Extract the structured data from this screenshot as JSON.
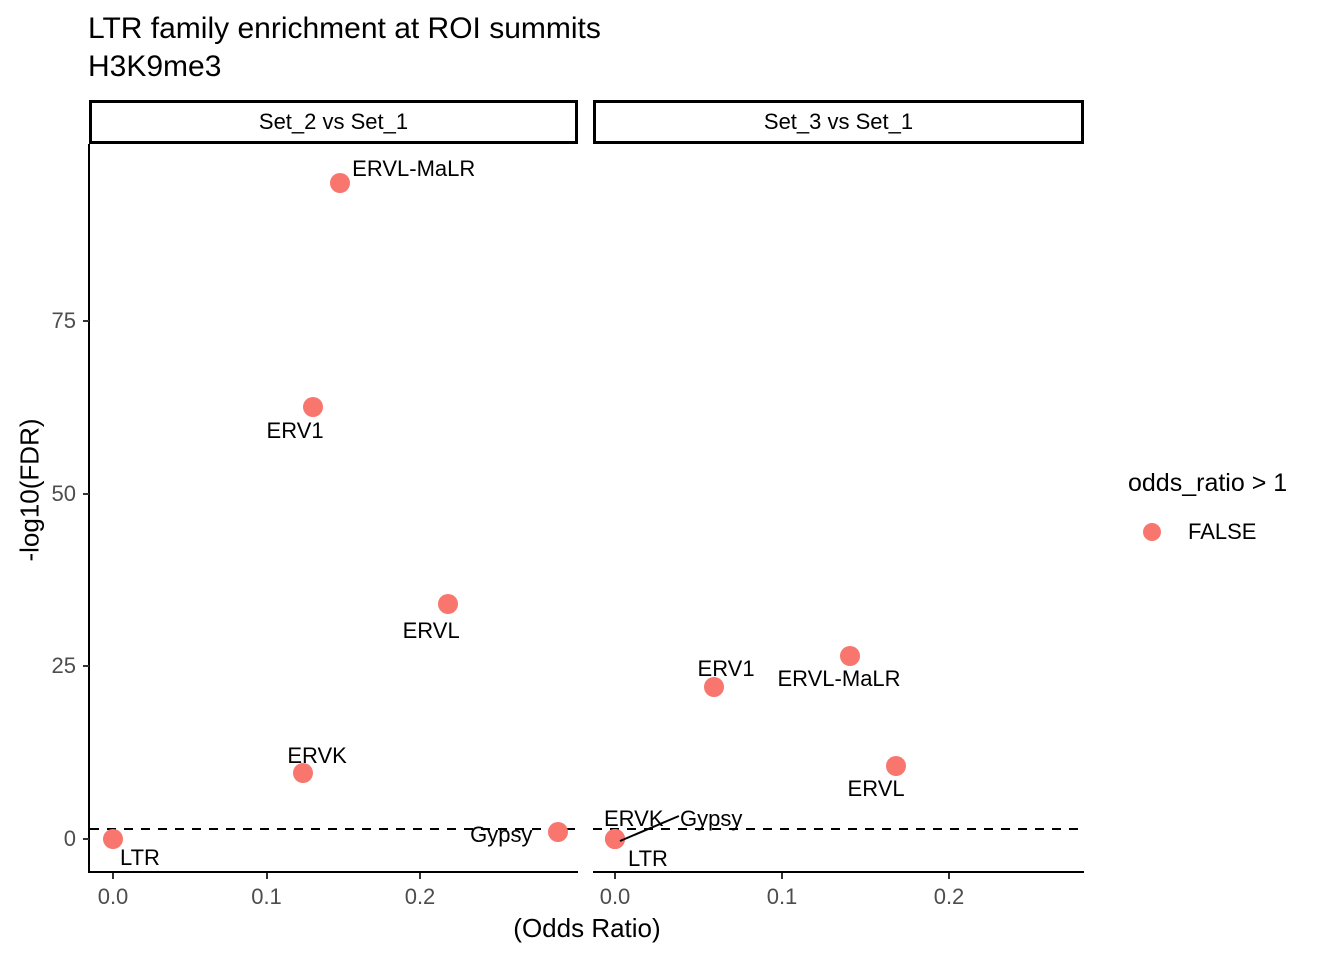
{
  "title": "LTR family enrichment at ROI summits",
  "subtitle": "H3K9me3",
  "x_axis": {
    "label": "(Odds Ratio)",
    "ticks": [
      "0.0",
      "0.1",
      "0.2"
    ]
  },
  "y_axis": {
    "label": "-log10(FDR)",
    "ticks": [
      "0",
      "25",
      "50",
      "75"
    ]
  },
  "legend": {
    "title": "odds_ratio > 1",
    "items": [
      {
        "label": "FALSE",
        "color": "#F8766D"
      }
    ]
  },
  "colors": {
    "point": "#F8766D",
    "tick_label": "#4D4D4D",
    "axis_line": "#000000"
  },
  "chart_data": {
    "type": "scatter",
    "title": "LTR family enrichment at ROI summits",
    "subtitle": "H3K9me3",
    "xlabel": "(Odds Ratio)",
    "ylabel": "-log10(FDR)",
    "legend_title": "odds_ratio > 1",
    "legend_items": [
      "FALSE"
    ],
    "point_color": "#F8766D",
    "dashed_hline_y": 1.3,
    "x_ticks": [
      0.0,
      0.1,
      0.2
    ],
    "y_ticks": [
      0,
      25,
      50,
      75
    ],
    "xlim": [
      -0.015,
      0.3
    ],
    "ylim": [
      -5,
      100
    ],
    "grid": false,
    "legend_position": "right",
    "facets": [
      {
        "label": "Set_2 vs Set_1",
        "points": [
          {
            "family": "ERVL-MaLR",
            "odds_ratio": 0.148,
            "neg_log10_fdr": 95
          },
          {
            "family": "ERV1",
            "odds_ratio": 0.13,
            "neg_log10_fdr": 62.5
          },
          {
            "family": "ERVL",
            "odds_ratio": 0.218,
            "neg_log10_fdr": 34
          },
          {
            "family": "ERVK",
            "odds_ratio": 0.124,
            "neg_log10_fdr": 9.5
          },
          {
            "family": "Gypsy",
            "odds_ratio": 0.29,
            "neg_log10_fdr": 1
          },
          {
            "family": "LTR",
            "odds_ratio": 0.0,
            "neg_log10_fdr": 0
          }
        ]
      },
      {
        "label": "Set_3 vs Set_1",
        "points": [
          {
            "family": "ERVL-MaLR",
            "odds_ratio": 0.141,
            "neg_log10_fdr": 26.5
          },
          {
            "family": "ERV1",
            "odds_ratio": 0.059,
            "neg_log10_fdr": 22
          },
          {
            "family": "ERVL",
            "odds_ratio": 0.168,
            "neg_log10_fdr": 10.5
          },
          {
            "family": "ERVK",
            "odds_ratio": 0.0,
            "neg_log10_fdr": 0
          },
          {
            "family": "Gypsy",
            "odds_ratio": 0.0,
            "neg_log10_fdr": 0
          },
          {
            "family": "LTR",
            "odds_ratio": 0.0,
            "neg_log10_fdr": 0
          }
        ]
      }
    ]
  }
}
